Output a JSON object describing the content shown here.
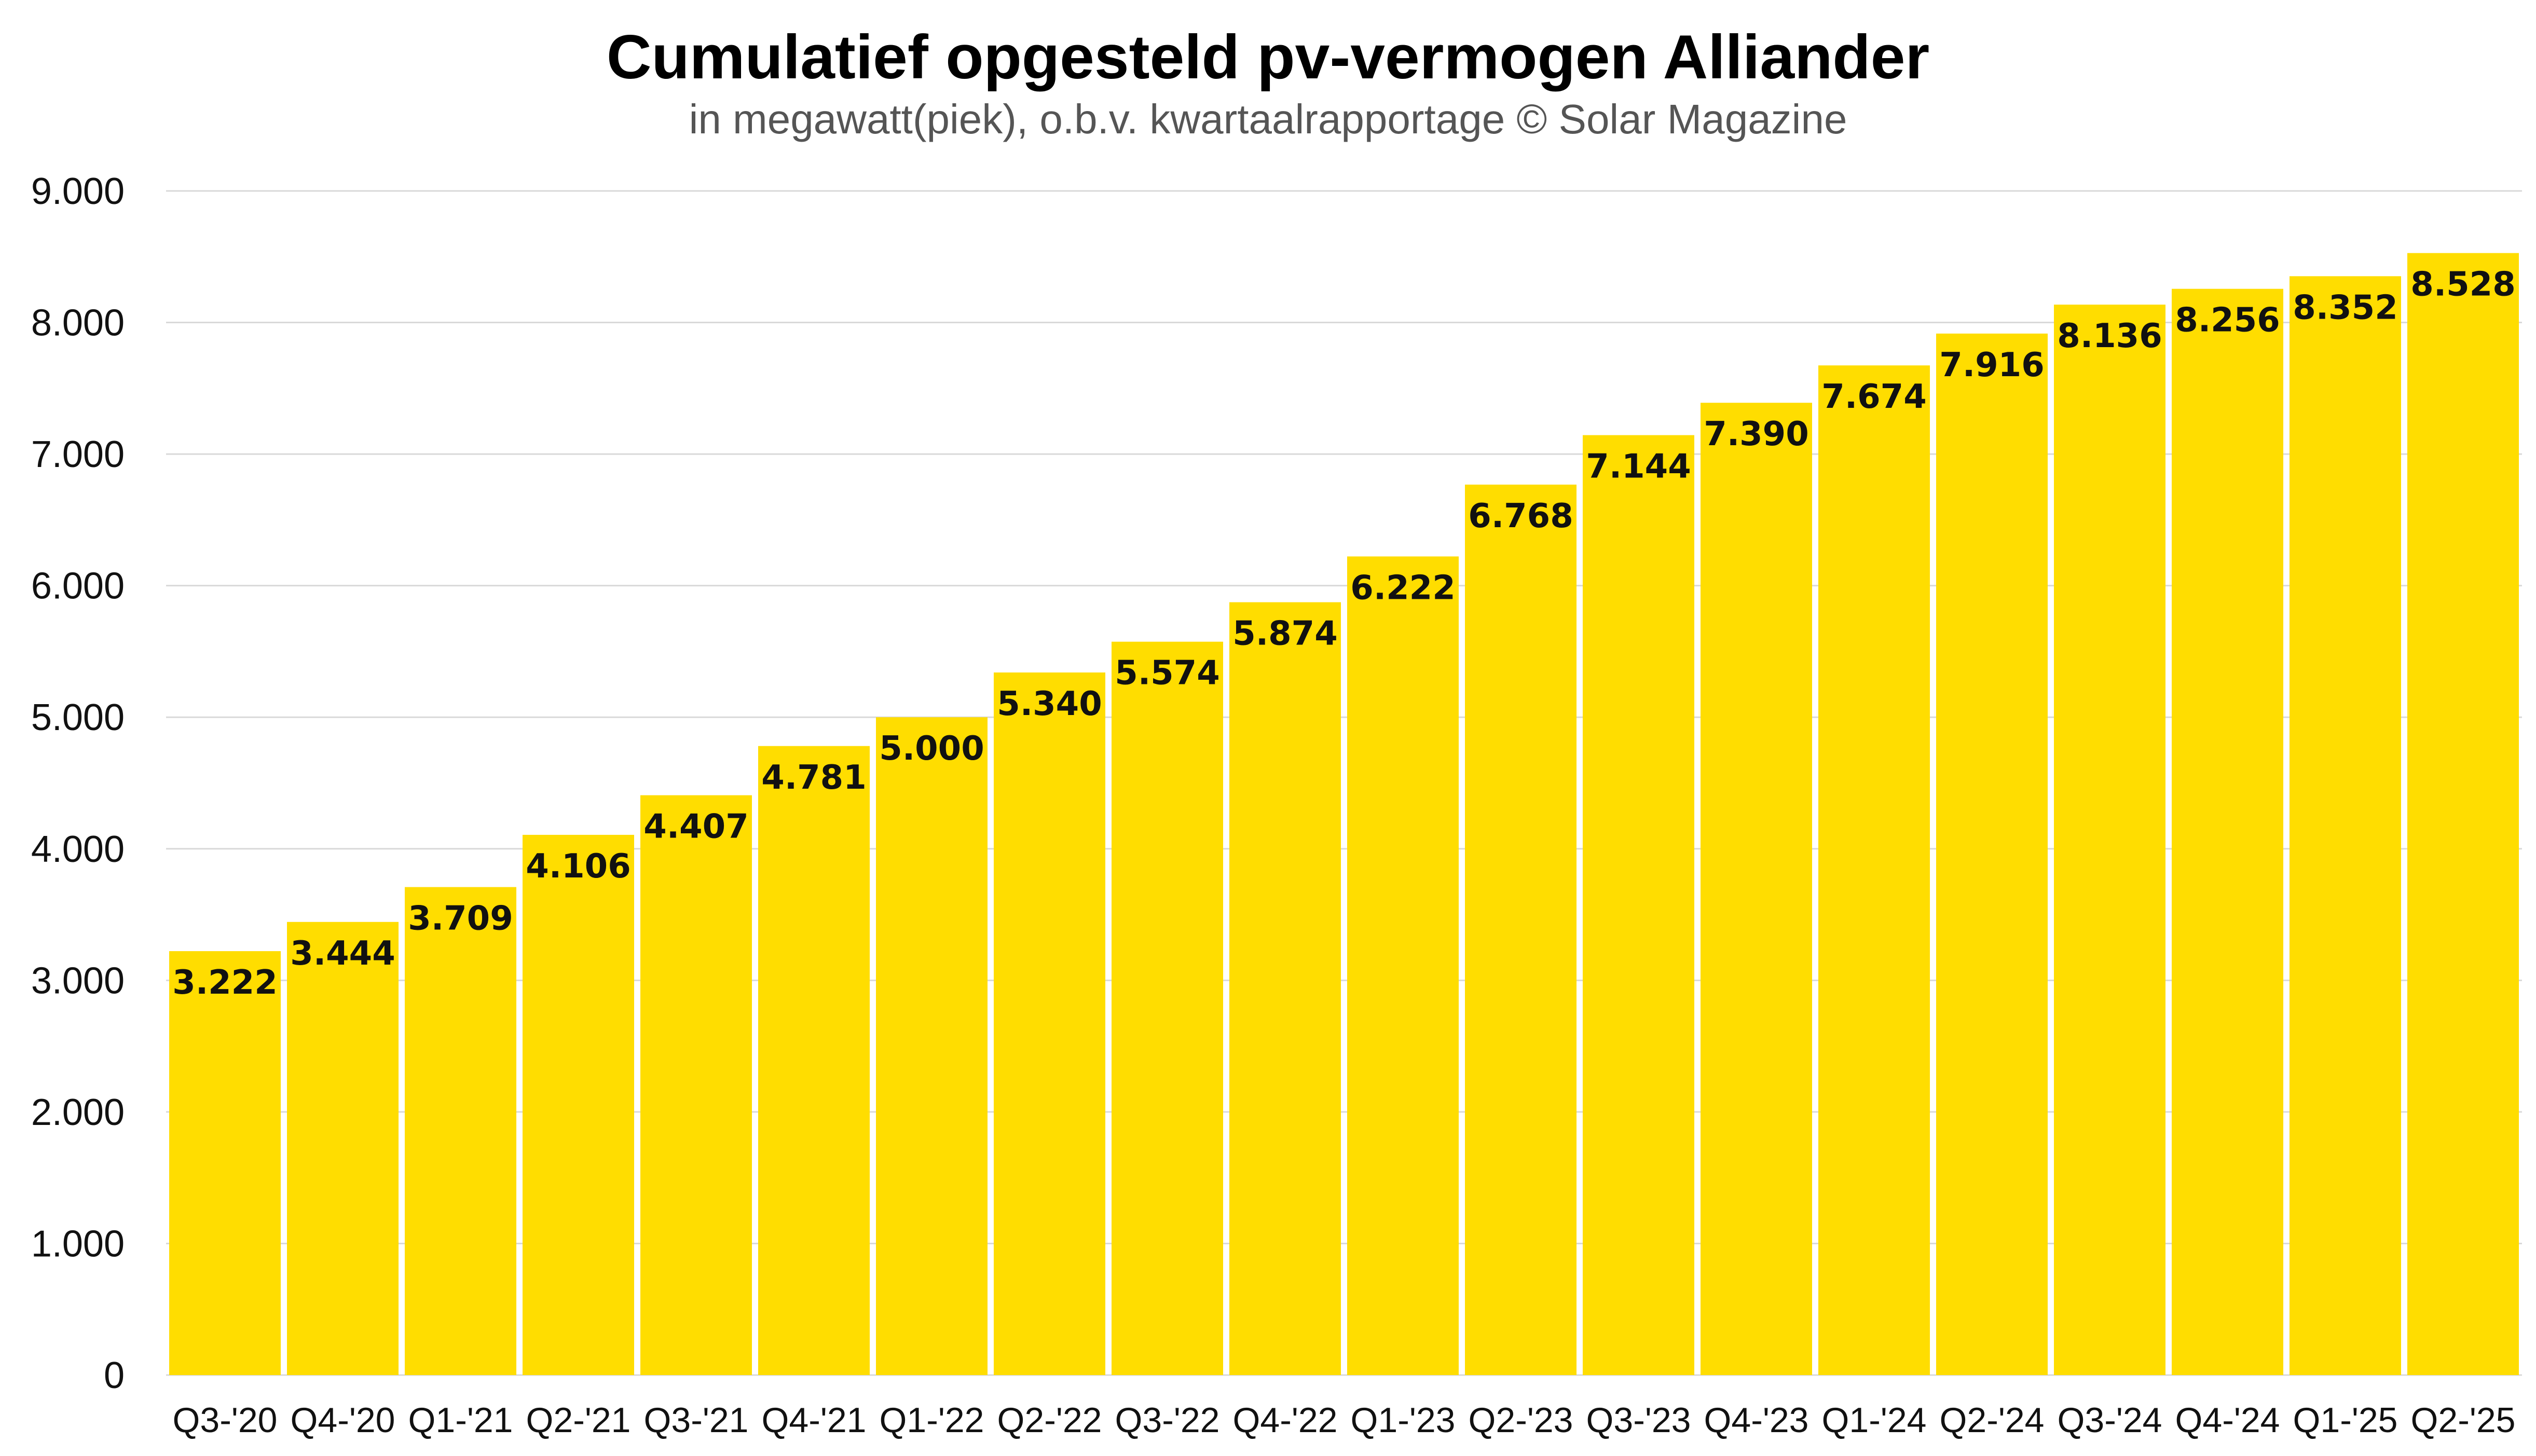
{
  "chart_data": {
    "type": "bar",
    "title": "Cumulatief opgesteld pv-vermogen Alliander",
    "subtitle": "in megawatt(piek), o.b.v. kwartaalrapportage © Solar Magazine",
    "xlabel": "",
    "ylabel": "",
    "categories": [
      "Q3-'20",
      "Q4-'20",
      "Q1-'21",
      "Q2-'21",
      "Q3-'21",
      "Q4-'21",
      "Q1-'22",
      "Q2-'22",
      "Q3-'22",
      "Q4-'22",
      "Q1-'23",
      "Q2-'23",
      "Q3-'23",
      "Q4-'23",
      "Q1-'24",
      "Q2-'24",
      "Q3-'24",
      "Q4-'24",
      "Q1-'25",
      "Q2-'25"
    ],
    "values": [
      3222,
      3444,
      3709,
      4106,
      4407,
      4781,
      5000,
      5340,
      5574,
      5874,
      6222,
      6768,
      7144,
      7390,
      7674,
      7916,
      8136,
      8256,
      8352,
      8528
    ],
    "data_labels": [
      "3.222",
      "3.444",
      "3.709",
      "4.106",
      "4.407",
      "4.781",
      "5.000",
      "5.340",
      "5.574",
      "5.874",
      "6.222",
      "6.768",
      "7.144",
      "7.390",
      "7.674",
      "7.916",
      "8.136",
      "8.256",
      "8.352",
      "8.528"
    ],
    "ylim": [
      0,
      9000
    ],
    "yticks": [
      0,
      1000,
      2000,
      3000,
      4000,
      5000,
      6000,
      7000,
      8000,
      9000
    ],
    "ytick_labels": [
      "0",
      "1.000",
      "2.000",
      "3.000",
      "4.000",
      "5.000",
      "6.000",
      "7.000",
      "8.000",
      "9.000"
    ],
    "grid": true,
    "legend": "none",
    "colors": {
      "bar": "#FFDD00",
      "grid": "#D9D9D9",
      "text": "#111111"
    }
  }
}
